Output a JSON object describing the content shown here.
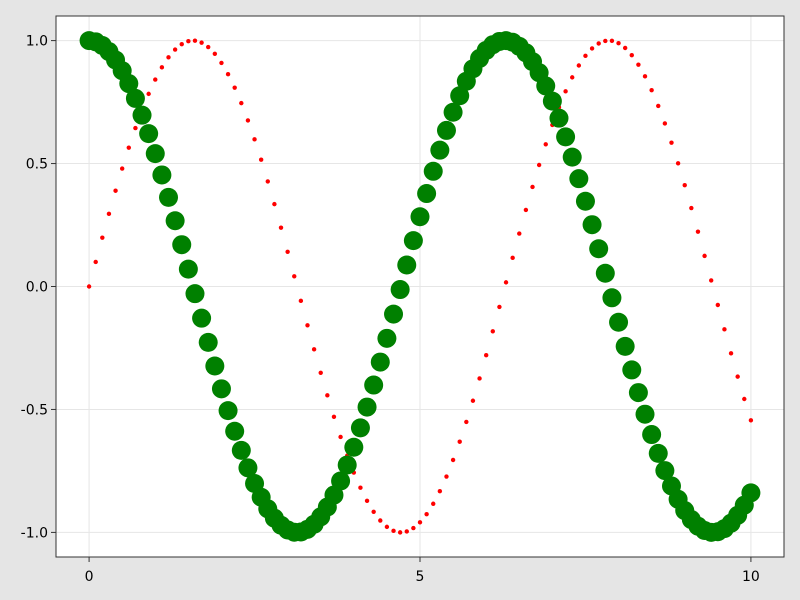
{
  "chart_data": {
    "type": "scatter",
    "xlim": [
      -0.5,
      10.5
    ],
    "ylim": [
      -1.1,
      1.1
    ],
    "grid": true,
    "x_ticks": [
      0,
      5,
      10
    ],
    "x_tick_labels": [
      "0",
      "5",
      "10"
    ],
    "y_ticks": [
      -1.0,
      -0.5,
      0.0,
      0.5,
      1.0
    ],
    "y_tick_labels": [
      "-1.0",
      "-0.5",
      "0.0",
      "0.5",
      "1.0"
    ],
    "background": "#e5e5e5",
    "plot_background": "#ffffff",
    "series": [
      {
        "color": "#ff0000",
        "marker": "small-dot",
        "x": [
          0.0,
          0.1,
          0.2,
          0.3,
          0.4,
          0.5,
          0.6,
          0.7,
          0.8,
          0.9,
          1.0,
          1.1,
          1.2,
          1.3,
          1.4,
          1.5,
          1.6,
          1.7,
          1.8,
          1.9,
          2.0,
          2.1,
          2.2,
          2.3,
          2.4,
          2.5,
          2.6,
          2.7,
          2.8,
          2.9,
          3.0,
          3.1,
          3.2,
          3.3,
          3.4,
          3.5,
          3.6,
          3.7,
          3.8,
          3.9,
          4.0,
          4.1,
          4.2,
          4.3,
          4.4,
          4.5,
          4.6,
          4.7,
          4.8,
          4.9,
          5.0,
          5.1,
          5.2,
          5.3,
          5.4,
          5.5,
          5.6,
          5.7,
          5.8,
          5.9,
          6.0,
          6.1,
          6.2,
          6.3,
          6.4,
          6.5,
          6.6,
          6.7,
          6.8,
          6.9,
          7.0,
          7.1,
          7.2,
          7.3,
          7.4,
          7.5,
          7.6,
          7.7,
          7.8,
          7.9,
          8.0,
          8.1,
          8.2,
          8.3,
          8.4,
          8.5,
          8.6,
          8.7,
          8.8,
          8.9,
          9.0,
          9.1,
          9.2,
          9.3,
          9.4,
          9.5,
          9.6,
          9.7,
          9.8,
          9.9,
          10.0
        ],
        "y": [
          0.0,
          0.0998,
          0.1987,
          0.2955,
          0.3894,
          0.4794,
          0.5646,
          0.6442,
          0.7174,
          0.7833,
          0.8415,
          0.8912,
          0.932,
          0.9636,
          0.9854,
          0.9975,
          0.9996,
          0.9917,
          0.9738,
          0.9463,
          0.9093,
          0.8632,
          0.8085,
          0.7457,
          0.6755,
          0.5985,
          0.5155,
          0.4274,
          0.335,
          0.2392,
          0.1411,
          0.0416,
          -0.0584,
          -0.1577,
          -0.2555,
          -0.3508,
          -0.4425,
          -0.5298,
          -0.6119,
          -0.6878,
          -0.7568,
          -0.8183,
          -0.8716,
          -0.9162,
          -0.9516,
          -0.9775,
          -0.9937,
          -0.9999,
          -0.9962,
          -0.9825,
          -0.9589,
          -0.9258,
          -0.8835,
          -0.8323,
          -0.7728,
          -0.7055,
          -0.6313,
          -0.5507,
          -0.4646,
          -0.3739,
          -0.2794,
          -0.1822,
          -0.0831,
          0.0168,
          0.1165,
          0.2151,
          0.3115,
          0.4048,
          0.4941,
          0.5784,
          0.657,
          0.729,
          0.7937,
          0.8504,
          0.8987,
          0.938,
          0.9679,
          0.9882,
          0.9985,
          0.9989,
          0.9894,
          0.9699,
          0.9407,
          0.9022,
          0.8546,
          0.7985,
          0.7344,
          0.663,
          0.585,
          0.501,
          0.4121,
          0.319,
          0.2229,
          0.1245,
          0.0248,
          -0.0752,
          -0.1743,
          -0.2718,
          -0.3665,
          -0.4575,
          -0.544
        ]
      },
      {
        "color": "#008000",
        "marker": "large-dot",
        "x": [
          0.0,
          0.1,
          0.2,
          0.3,
          0.4,
          0.5,
          0.6,
          0.7,
          0.8,
          0.9,
          1.0,
          1.1,
          1.2,
          1.3,
          1.4,
          1.5,
          1.6,
          1.7,
          1.8,
          1.9,
          2.0,
          2.1,
          2.2,
          2.3,
          2.4,
          2.5,
          2.6,
          2.7,
          2.8,
          2.9,
          3.0,
          3.1,
          3.2,
          3.3,
          3.4,
          3.5,
          3.6,
          3.7,
          3.8,
          3.9,
          4.0,
          4.1,
          4.2,
          4.3,
          4.4,
          4.5,
          4.6,
          4.7,
          4.8,
          4.9,
          5.0,
          5.1,
          5.2,
          5.3,
          5.4,
          5.5,
          5.6,
          5.7,
          5.8,
          5.9,
          6.0,
          6.1,
          6.2,
          6.3,
          6.4,
          6.5,
          6.6,
          6.7,
          6.8,
          6.9,
          7.0,
          7.1,
          7.2,
          7.3,
          7.4,
          7.5,
          7.6,
          7.7,
          7.8,
          7.9,
          8.0,
          8.1,
          8.2,
          8.3,
          8.4,
          8.5,
          8.6,
          8.7,
          8.8,
          8.9,
          9.0,
          9.1,
          9.2,
          9.3,
          9.4,
          9.5,
          9.6,
          9.7,
          9.8,
          9.9,
          10.0
        ],
        "y": [
          1.0,
          0.995,
          0.9801,
          0.9553,
          0.9211,
          0.8776,
          0.8253,
          0.7648,
          0.6967,
          0.6216,
          0.5403,
          0.4536,
          0.3624,
          0.2675,
          0.17,
          0.0707,
          -0.0292,
          -0.1288,
          -0.2272,
          -0.3233,
          -0.4161,
          -0.5048,
          -0.5885,
          -0.6663,
          -0.7374,
          -0.8011,
          -0.8569,
          -0.9041,
          -0.9422,
          -0.971,
          -0.99,
          -0.9991,
          -0.9983,
          -0.9875,
          -0.9668,
          -0.9365,
          -0.8968,
          -0.8481,
          -0.791,
          -0.7259,
          -0.6536,
          -0.5748,
          -0.4903,
          -0.4008,
          -0.3073,
          -0.2108,
          -0.1122,
          -0.0124,
          0.0875,
          0.1865,
          0.2837,
          0.378,
          0.4685,
          0.5544,
          0.6347,
          0.7087,
          0.7756,
          0.8347,
          0.8855,
          0.9275,
          0.9602,
          0.9833,
          0.9965,
          0.9999,
          0.9932,
          0.9766,
          0.9502,
          0.9144,
          0.8694,
          0.8157,
          0.7539,
          0.6845,
          0.6084,
          0.5261,
          0.4385,
          0.3466,
          0.2513,
          0.1534,
          0.054,
          -0.046,
          -0.1455,
          -0.2435,
          -0.3392,
          -0.4314,
          -0.5193,
          -0.602,
          -0.6787,
          -0.7486,
          -0.8111,
          -0.8654,
          -0.9111,
          -0.9477,
          -0.9748,
          -0.9922,
          -0.9997,
          -0.9972,
          -0.9847,
          -0.9624,
          -0.9304,
          -0.8892,
          -0.8391
        ]
      }
    ]
  }
}
